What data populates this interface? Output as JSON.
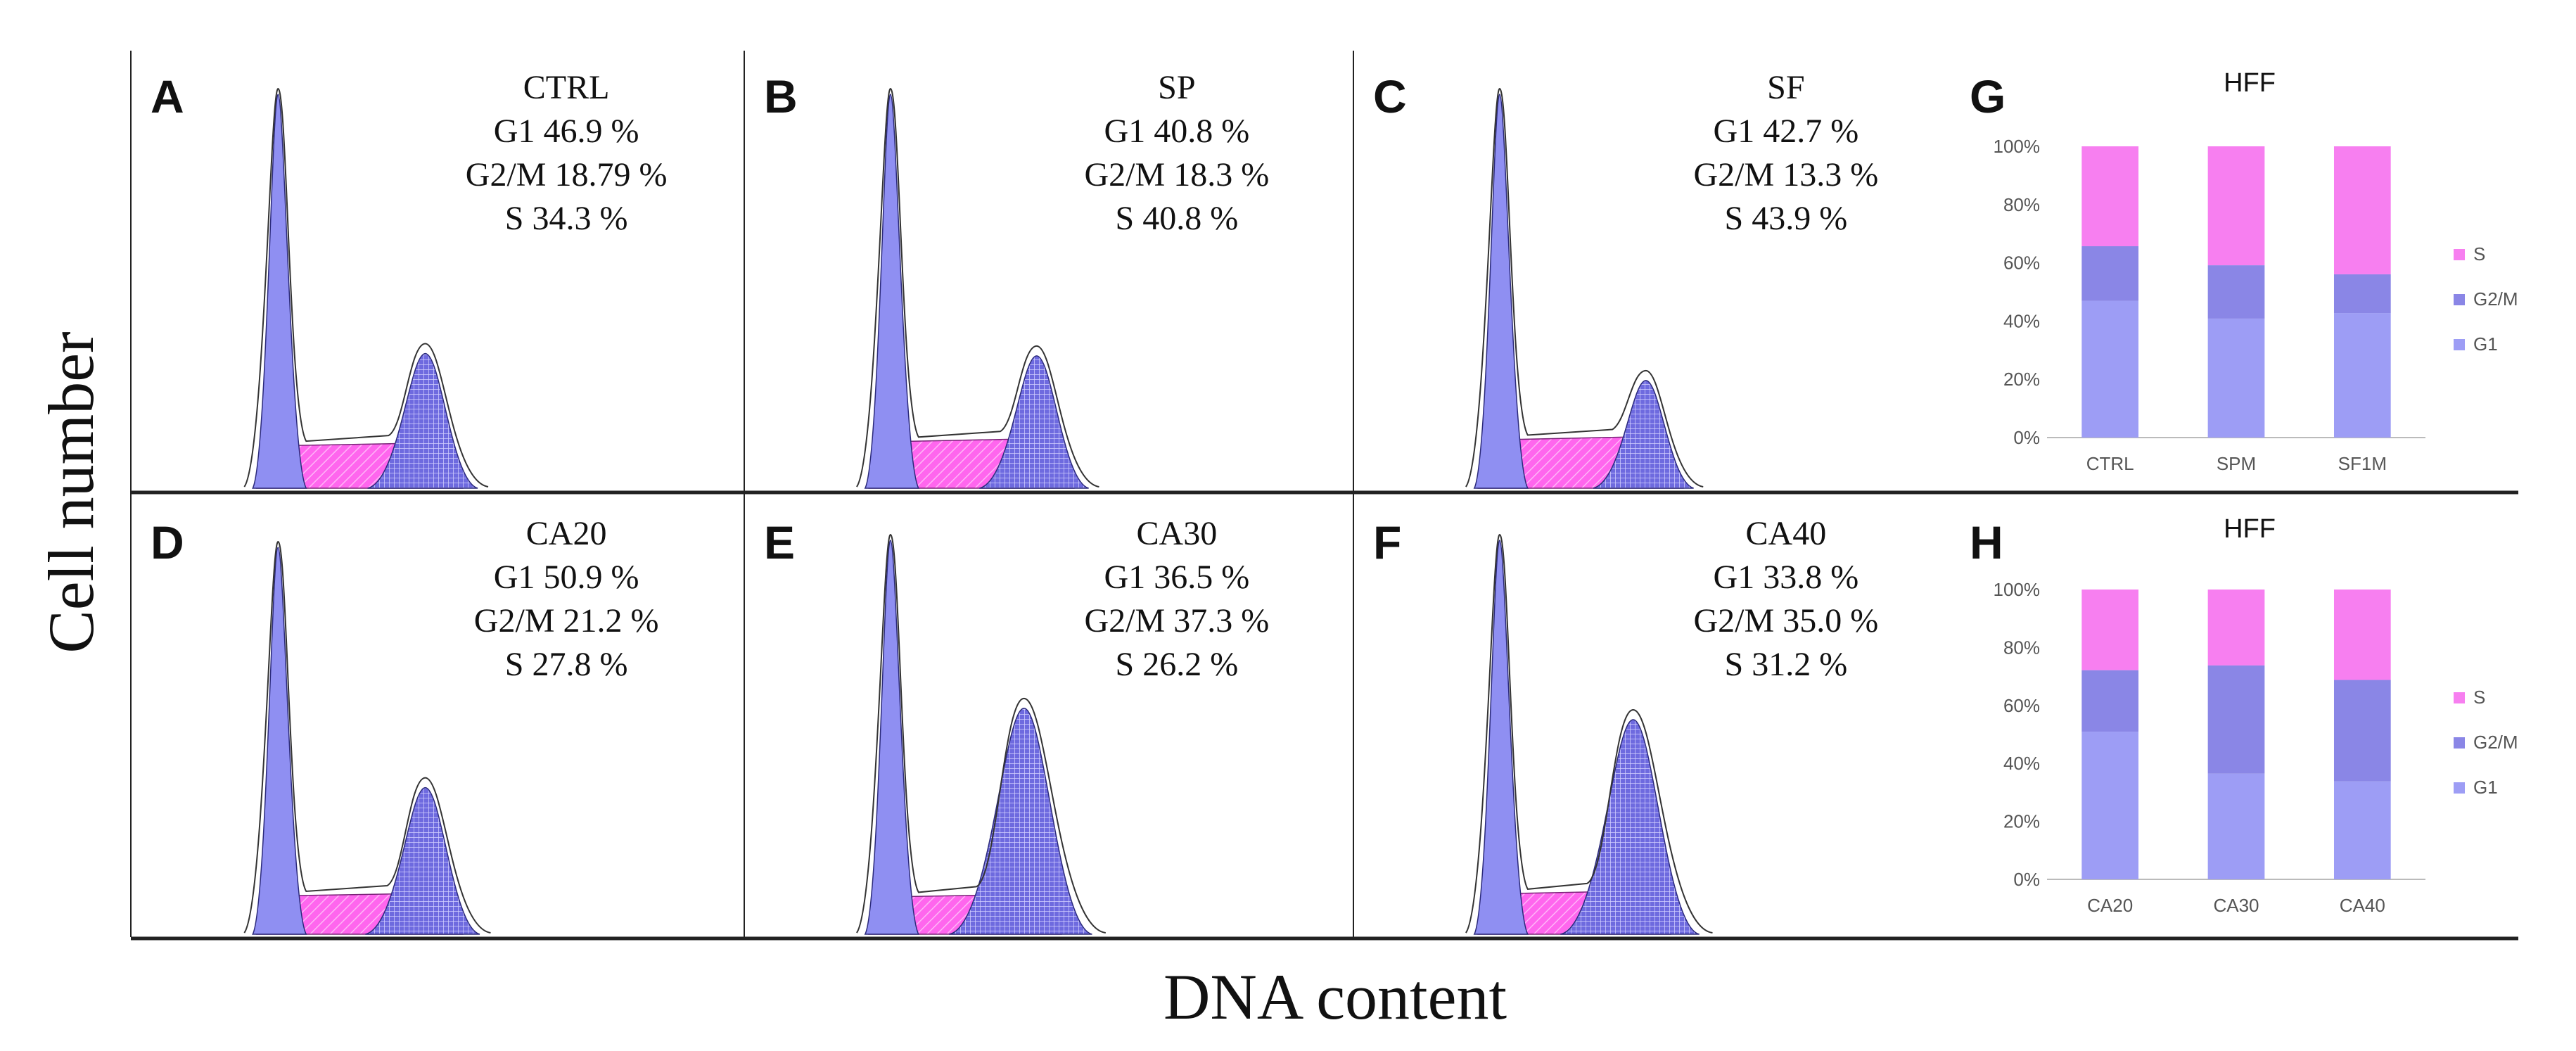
{
  "axes": {
    "ylabel": "Cell number",
    "xlabel": "DNA content"
  },
  "colors": {
    "g1": "#8f8ff2",
    "g2m": "#7470df",
    "s": "#ff66ee",
    "bar_g1": "#9d9df5",
    "bar_g2m": "#8a86e6",
    "bar_s": "#f77ff0"
  },
  "histograms": [
    {
      "letter": "A",
      "sample": "CTRL",
      "g1_text": "G1 46.9 %",
      "g2m_text": "G2/M 18.79 %",
      "s_text": "S 34.3 %",
      "g1": 46.9,
      "g2m": 18.79,
      "s": 34.3
    },
    {
      "letter": "B",
      "sample": "SP",
      "g1_text": "G1 40.8 %",
      "g2m_text": "G2/M 18.3 %",
      "s_text": "S 40.8 %",
      "g1": 40.8,
      "g2m": 18.3,
      "s": 40.8
    },
    {
      "letter": "C",
      "sample": "SF",
      "g1_text": "G1 42.7 %",
      "g2m_text": "G2/M 13.3 %",
      "s_text": "S 43.9 %",
      "g1": 42.7,
      "g2m": 13.3,
      "s": 43.9
    },
    {
      "letter": "D",
      "sample": "CA20",
      "g1_text": "G1 50.9 %",
      "g2m_text": "G2/M 21.2 %",
      "s_text": "S 27.8 %",
      "g1": 50.9,
      "g2m": 21.2,
      "s": 27.8
    },
    {
      "letter": "E",
      "sample": "CA30",
      "g1_text": "G1 36.5 %",
      "g2m_text": "G2/M 37.3 %",
      "s_text": "S 26.2 %",
      "g1": 36.5,
      "g2m": 37.3,
      "s": 26.2
    },
    {
      "letter": "F",
      "sample": "CA40",
      "g1_text": "G1 33.8 %",
      "g2m_text": "G2/M 35.0 %",
      "s_text": "S 31.2 %",
      "g1": 33.8,
      "g2m": 35.0,
      "s": 31.2
    }
  ],
  "chart_data": [
    {
      "type": "bar",
      "stacked": true,
      "letter": "G",
      "title": "HFF",
      "categories": [
        "CTRL",
        "SPM",
        "SF1M"
      ],
      "series": [
        {
          "name": "G1",
          "values": [
            46.9,
            40.8,
            42.7
          ]
        },
        {
          "name": "G2/M",
          "values": [
            18.79,
            18.3,
            13.3
          ]
        },
        {
          "name": "S",
          "values": [
            34.3,
            40.8,
            43.9
          ]
        }
      ],
      "ylim": [
        0,
        100
      ],
      "yticks": [
        "0%",
        "20%",
        "40%",
        "60%",
        "80%",
        "100%"
      ],
      "legend": [
        "S",
        "G2/M",
        "G1"
      ],
      "legend_position": "right"
    },
    {
      "type": "bar",
      "stacked": true,
      "letter": "H",
      "title": "HFF",
      "categories": [
        "CA20",
        "CA30",
        "CA40"
      ],
      "series": [
        {
          "name": "G1",
          "values": [
            50.9,
            36.5,
            33.8
          ]
        },
        {
          "name": "G2/M",
          "values": [
            21.2,
            37.3,
            35.0
          ]
        },
        {
          "name": "S",
          "values": [
            27.8,
            26.2,
            31.2
          ]
        }
      ],
      "ylim": [
        0,
        100
      ],
      "yticks": [
        "0%",
        "20%",
        "40%",
        "60%",
        "80%",
        "100%"
      ],
      "legend": [
        "S",
        "G2/M",
        "G1"
      ],
      "legend_position": "right"
    }
  ]
}
